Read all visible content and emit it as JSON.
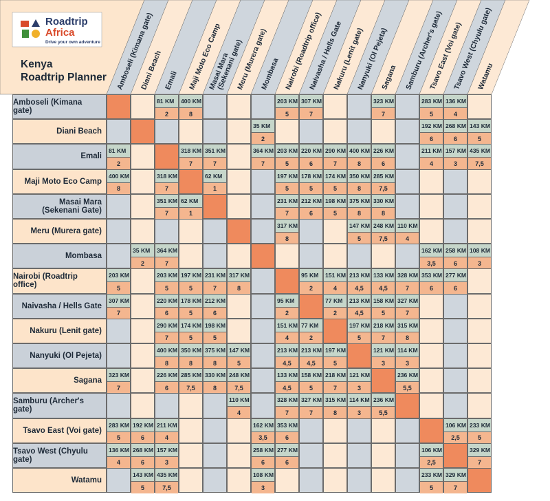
{
  "logo": {
    "line1": "Roadtrip",
    "line2": "Africa",
    "tagline": "Drive your own adventure"
  },
  "title": [
    "Kenya",
    "Roadtrip Planner"
  ],
  "columns": [
    [
      "Amboseli (Kimana gate)"
    ],
    [
      "Diani Beach"
    ],
    [
      "Emali"
    ],
    [
      "Maji Moto Eco Camp"
    ],
    [
      "Masai Mara",
      "(Sekenani gate)"
    ],
    [
      "Meru (Murera gate)"
    ],
    [
      "Mombasa"
    ],
    [
      "Nairobi (Roadtrip office)"
    ],
    [
      "Naivasha / Hells Gate"
    ],
    [
      "Nakuru (Lenit gate)"
    ],
    [
      "Nanyuki (Ol Pejeta)"
    ],
    [
      "Sagana"
    ],
    [
      "Samburu (Archer's gate)"
    ],
    [
      "Tsavo East (Voi gate)"
    ],
    [
      "Tsavo West (Chyulu gate)"
    ],
    [
      "Watamu"
    ]
  ],
  "rows": [
    {
      "label": [
        "Amboseli (Kimana gate)"
      ],
      "cells": [
        null,
        null,
        [
          "81 KM",
          "2"
        ],
        [
          "400 KM",
          "8"
        ],
        null,
        null,
        null,
        [
          "203 KM",
          "5"
        ],
        [
          "307 KM",
          "7"
        ],
        null,
        null,
        [
          "323 KM",
          "7"
        ],
        null,
        [
          "283 KM",
          "5"
        ],
        [
          "136 KM",
          "4"
        ],
        null
      ]
    },
    {
      "label": [
        "Diani Beach"
      ],
      "cells": [
        null,
        null,
        null,
        null,
        null,
        null,
        [
          "35 KM",
          "2"
        ],
        null,
        null,
        null,
        null,
        null,
        null,
        [
          "192 KM",
          "6"
        ],
        [
          "268 KM",
          "6"
        ],
        [
          "143 KM",
          "5"
        ]
      ]
    },
    {
      "label": [
        "Emali"
      ],
      "cells": [
        [
          "81 KM",
          "2"
        ],
        null,
        null,
        [
          "318 KM",
          "7"
        ],
        [
          "351 KM",
          "7"
        ],
        null,
        [
          "364 KM",
          "7"
        ],
        [
          "203 KM",
          "5"
        ],
        [
          "220 KM",
          "6"
        ],
        [
          "290 KM",
          "7"
        ],
        [
          "400 KM",
          "8"
        ],
        [
          "226 KM",
          "6"
        ],
        null,
        [
          "211 KM",
          "4"
        ],
        [
          "157 KM",
          "3"
        ],
        [
          "435 KM",
          "7,5"
        ]
      ]
    },
    {
      "label": [
        "Maji Moto Eco Camp"
      ],
      "cells": [
        [
          "400 KM",
          "8"
        ],
        null,
        [
          "318 KM",
          "7"
        ],
        null,
        [
          "62 KM",
          "1"
        ],
        null,
        null,
        [
          "197 KM",
          "5"
        ],
        [
          "178 KM",
          "5"
        ],
        [
          "174 KM",
          "5"
        ],
        [
          "350 KM",
          "8"
        ],
        [
          "285 KM",
          "7,5"
        ],
        null,
        null,
        null,
        null
      ]
    },
    {
      "label": [
        "Masai Mara",
        "(Sekenani Gate)"
      ],
      "cells": [
        null,
        null,
        [
          "351 KM",
          "7"
        ],
        [
          "62 KM",
          "1"
        ],
        null,
        null,
        null,
        [
          "231 KM",
          "7"
        ],
        [
          "212 KM",
          "6"
        ],
        [
          "198 KM",
          "5"
        ],
        [
          "375 KM",
          "8"
        ],
        [
          "330 KM",
          "8"
        ],
        null,
        null,
        null,
        null
      ]
    },
    {
      "label": [
        "Meru (Murera gate)"
      ],
      "cells": [
        null,
        null,
        null,
        null,
        null,
        null,
        null,
        [
          "317 KM",
          "8"
        ],
        null,
        null,
        [
          "147 KM",
          "5"
        ],
        [
          "248 KM",
          "7,5"
        ],
        [
          "110 KM",
          "4"
        ],
        null,
        null,
        null
      ]
    },
    {
      "label": [
        "Mombasa"
      ],
      "cells": [
        null,
        [
          "35 KM",
          "2"
        ],
        [
          "364 KM",
          "7"
        ],
        null,
        null,
        null,
        null,
        null,
        null,
        null,
        null,
        null,
        null,
        [
          "162 KM",
          "3,5"
        ],
        [
          "258 KM",
          "6"
        ],
        [
          "108 KM",
          "3"
        ]
      ]
    },
    {
      "label": [
        "Nairobi (Roadtrip office)"
      ],
      "cells": [
        [
          "203 KM",
          "5"
        ],
        null,
        [
          "203 KM",
          "5"
        ],
        [
          "197 KM",
          "5"
        ],
        [
          "231 KM",
          "7"
        ],
        [
          "317 KM",
          "8"
        ],
        null,
        null,
        [
          "95 KM",
          "2"
        ],
        [
          "151 KM",
          "4"
        ],
        [
          "213 KM",
          "4,5"
        ],
        [
          "133 KM",
          "4,5"
        ],
        [
          "328 KM",
          "7"
        ],
        [
          "353 KM",
          "6"
        ],
        [
          "277 KM",
          "6"
        ],
        null
      ]
    },
    {
      "label": [
        "Naivasha / Hells Gate"
      ],
      "cells": [
        [
          "307 KM",
          "7"
        ],
        null,
        [
          "220 KM",
          "6"
        ],
        [
          "178 KM",
          "5"
        ],
        [
          "212 KM",
          "6"
        ],
        null,
        null,
        [
          "95 KM",
          "2"
        ],
        null,
        [
          "77 KM",
          "2"
        ],
        [
          "213 KM",
          "4,5"
        ],
        [
          "158 KM",
          "5"
        ],
        [
          "327 KM",
          "7"
        ],
        null,
        null,
        null
      ]
    },
    {
      "label": [
        "Nakuru (Lenit gate)"
      ],
      "cells": [
        null,
        null,
        [
          "290 KM",
          "7"
        ],
        [
          "174 KM",
          "5"
        ],
        [
          "198 KM",
          "5"
        ],
        null,
        null,
        [
          "151 KM",
          "4"
        ],
        [
          "77 KM",
          "2"
        ],
        null,
        [
          "197 KM",
          "5"
        ],
        [
          "218 KM",
          "7"
        ],
        [
          "315 KM",
          "8"
        ],
        null,
        null,
        null
      ]
    },
    {
      "label": [
        "Nanyuki (Ol Pejeta)"
      ],
      "cells": [
        null,
        null,
        [
          "400 KM",
          "8"
        ],
        [
          "350 KM",
          "8"
        ],
        [
          "375 KM",
          "8"
        ],
        [
          "147 KM",
          "5"
        ],
        null,
        [
          "213 KM",
          "4,5"
        ],
        [
          "213 KM",
          "4,5"
        ],
        [
          "197 KM",
          "5"
        ],
        null,
        [
          "121 KM",
          "3"
        ],
        [
          "114 KM",
          "3"
        ],
        null,
        null,
        null
      ]
    },
    {
      "label": [
        "Sagana"
      ],
      "cells": [
        [
          "323 KM",
          "7"
        ],
        null,
        [
          "226 KM",
          "6"
        ],
        [
          "285 KM",
          "7,5"
        ],
        [
          "330 KM",
          "8"
        ],
        [
          "248 KM",
          "7,5"
        ],
        null,
        [
          "133 KM",
          "4,5"
        ],
        [
          "158 KM",
          "5"
        ],
        [
          "218 KM",
          "7"
        ],
        [
          "121 KM",
          "3"
        ],
        null,
        [
          "236 KM",
          "5,5"
        ],
        null,
        null,
        null
      ]
    },
    {
      "label": [
        "Samburu (Archer's gate)"
      ],
      "cells": [
        null,
        null,
        null,
        null,
        null,
        [
          "110 KM",
          "4"
        ],
        null,
        [
          "328 KM",
          "7"
        ],
        [
          "327 KM",
          "7"
        ],
        [
          "315 KM",
          "8"
        ],
        [
          "114 KM",
          "3"
        ],
        [
          "236 KM",
          "5,5"
        ],
        null,
        null,
        null,
        null
      ]
    },
    {
      "label": [
        "Tsavo East (Voi gate)"
      ],
      "cells": [
        [
          "283 KM",
          "5"
        ],
        [
          "192 KM",
          "6"
        ],
        [
          "211 KM",
          "4"
        ],
        null,
        null,
        null,
        [
          "162 KM",
          "3,5"
        ],
        [
          "353 KM",
          "6"
        ],
        null,
        null,
        null,
        null,
        null,
        null,
        [
          "106 KM",
          "2,5"
        ],
        [
          "233 KM",
          "5"
        ]
      ]
    },
    {
      "label": [
        "Tsavo West (Chyulu gate)"
      ],
      "cells": [
        [
          "136 KM",
          "4"
        ],
        [
          "268 KM",
          "6"
        ],
        [
          "157 KM",
          "3"
        ],
        null,
        null,
        null,
        [
          "258 KM",
          "6"
        ],
        [
          "277 KM",
          "6"
        ],
        null,
        null,
        null,
        null,
        null,
        [
          "106 KM",
          "2,5"
        ],
        null,
        [
          "329 KM",
          "7"
        ]
      ]
    },
    {
      "label": [
        "Watamu"
      ],
      "cells": [
        null,
        [
          "143 KM",
          "5"
        ],
        [
          "435 KM",
          "7,5"
        ],
        null,
        null,
        null,
        [
          "108 KM",
          "3"
        ],
        null,
        null,
        null,
        null,
        null,
        null,
        [
          "233 KM",
          "5"
        ],
        [
          "329 KM",
          "7"
        ],
        null
      ]
    }
  ]
}
